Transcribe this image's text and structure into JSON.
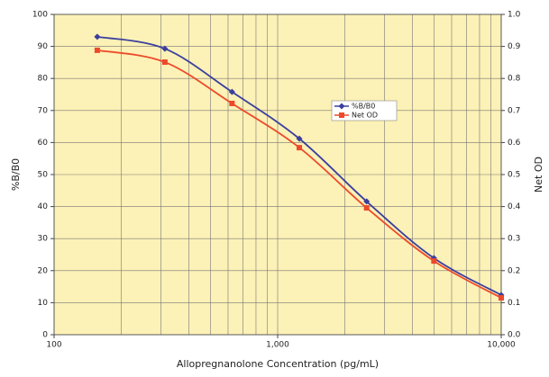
{
  "chart_data": {
    "type": "line",
    "x_label": "Allopregnanolone Concentration (pg/mL)",
    "y_label": "%B/B0",
    "y2_label": "Net OD",
    "x": [
      156,
      313,
      625,
      1250,
      2500,
      5000,
      10000
    ],
    "series": [
      {
        "name": "%B/B0",
        "color": "#3b3f9e",
        "marker": "diamond",
        "values": [
          93.0,
          89.3,
          75.8,
          61.2,
          41.6,
          23.9,
          12.4
        ]
      },
      {
        "name": "Net OD",
        "color": "#ec4a2b",
        "marker": "square",
        "axis": "y2",
        "values": [
          0.888,
          0.851,
          0.722,
          0.584,
          0.396,
          0.23,
          0.115
        ]
      }
    ],
    "x_log": true,
    "minor_grid": true,
    "grid": true,
    "xlim": [
      100,
      10000
    ],
    "xticks": [
      100,
      {
        "value": 1000,
        "label": "1,000"
      },
      {
        "value": 10000,
        "label": "10,000"
      }
    ],
    "ylim": [
      0,
      100
    ],
    "yticks": [
      0,
      10,
      20,
      30,
      40,
      50,
      60,
      70,
      80,
      90,
      100
    ],
    "y2lim": [
      0,
      1
    ],
    "y2ticks": [
      {
        "value": 0,
        "label": "0.0"
      },
      0.1,
      0.2,
      0.3,
      0.4,
      0.5,
      0.6,
      0.7,
      0.8,
      0.9,
      {
        "value": 1,
        "label": "1.0"
      }
    ],
    "legend": "center-right",
    "plot_background": "#fcf1b6"
  }
}
